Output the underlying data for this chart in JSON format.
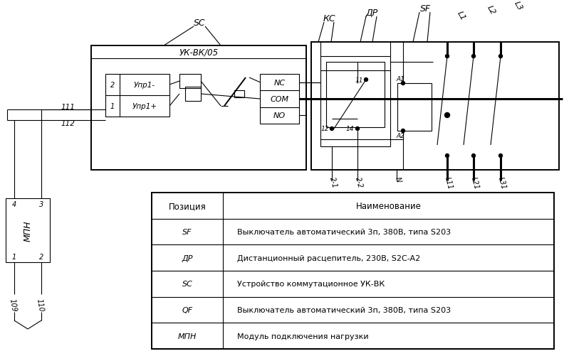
{
  "bg_color": "#ffffff",
  "table_rows": [
    [
      "SF",
      "Выключатель автоматический 3п, 380В, типа S203"
    ],
    [
      "ДР",
      "Дистанционный расцепитель, 230В, S2C-A2"
    ],
    [
      "SC",
      "Устройство коммутационное УК-ВК"
    ],
    [
      "QF",
      "Выключатель автоматический 3п, 380В, типа S203"
    ],
    [
      "МПН",
      "Модуль подключения нагрузки"
    ]
  ]
}
